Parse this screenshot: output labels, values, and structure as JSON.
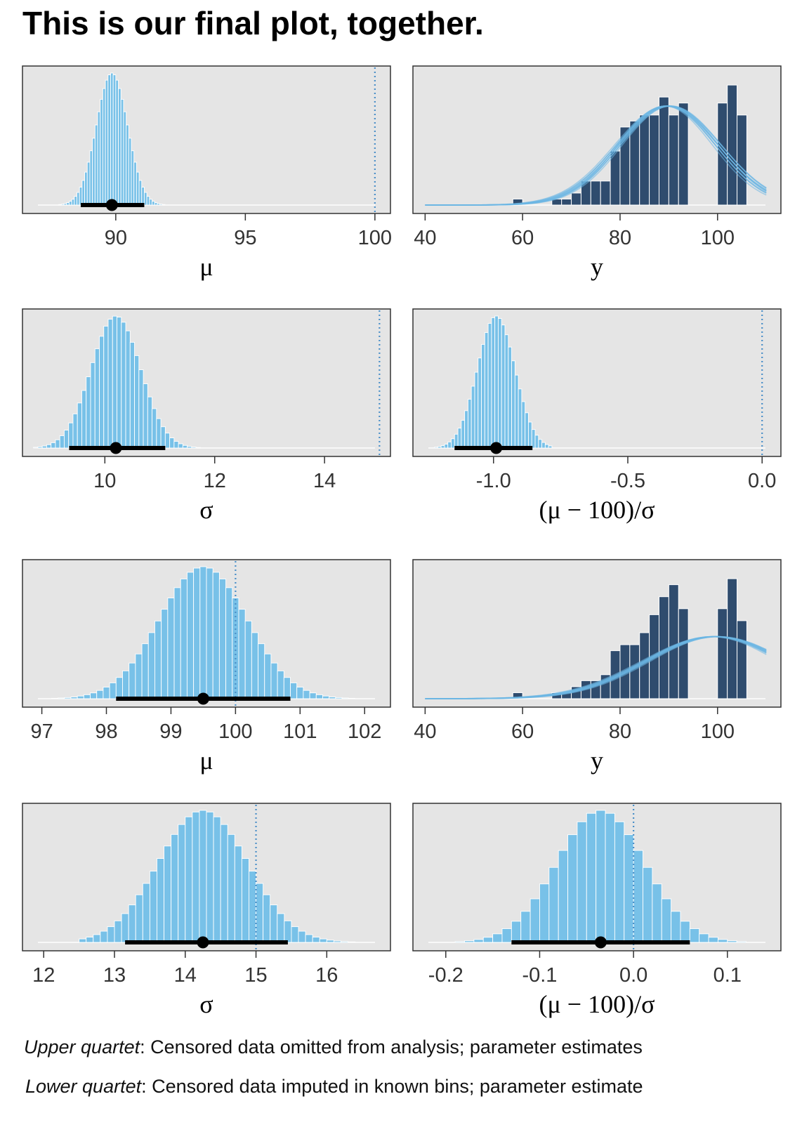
{
  "title": "This is our final plot, together.",
  "colors": {
    "panel_bg": "#e5e5e5",
    "hist_light": "#78c1e8",
    "hist_dark": "#2f4c6e",
    "ref_line": "#4a8fc8",
    "curve": "#6cb6e3",
    "interval": "#000000"
  },
  "captions": [
    {
      "label": "Upper quartet",
      "text": ": Censored data omitted from analysis; parameter estimates"
    },
    {
      "label": "Lower quartet",
      "text": ": Censored data imputed in known bins; parameter estimate"
    }
  ],
  "chart_data": [
    {
      "type": "bar",
      "variant": "posterior",
      "xlabel": "μ",
      "xlim": [
        86.4,
        100.6
      ],
      "xticks": [
        90,
        95,
        100
      ],
      "tick_labels": [
        "90",
        "95",
        "100"
      ],
      "dist": {
        "mean": 89.85,
        "sd": 0.6,
        "bin": 0.1,
        "from": 87.5,
        "to": 92.2
      },
      "interval": [
        88.65,
        91.1
      ],
      "point": 89.85,
      "ref_line": 100
    },
    {
      "type": "bar",
      "variant": "data",
      "xlabel": "y",
      "xlim": [
        37.5,
        113
      ],
      "xticks": [
        40,
        60,
        80,
        100
      ],
      "tick_labels": [
        "40",
        "60",
        "80",
        "100"
      ],
      "bins": [
        56,
        58,
        60,
        62,
        64,
        66,
        68,
        70,
        72,
        74,
        76,
        78,
        80,
        82,
        84,
        86,
        88,
        90,
        92,
        94,
        96,
        98,
        100,
        102,
        104,
        106
      ],
      "counts": [
        0,
        1,
        0,
        0,
        0,
        1,
        1,
        2,
        4,
        4,
        4,
        9,
        13,
        14,
        15,
        15,
        18,
        15,
        17,
        0,
        0,
        0,
        17,
        20,
        15,
        0
      ],
      "ylim_counts": 22,
      "curves": {
        "mean": 89.85,
        "sd": 10.2,
        "n": 12,
        "mean_jitter": 0.6,
        "sd_jitter": 0.5,
        "from": 40,
        "to": 110,
        "height": 0.75
      }
    },
    {
      "type": "bar",
      "variant": "posterior",
      "xlabel": "σ",
      "xlim": [
        8.5,
        15.2
      ],
      "xticks": [
        10,
        12,
        14
      ],
      "tick_labels": [
        "10",
        "12",
        "14"
      ],
      "dist": {
        "mean": 10.2,
        "sd": 0.45,
        "bin": 0.08,
        "from": 8.7,
        "to": 11.7
      },
      "interval": [
        9.35,
        11.1
      ],
      "point": 10.2,
      "ref_line": 15
    },
    {
      "type": "bar",
      "variant": "posterior",
      "xlabel": "(μ − 100)/σ",
      "xlim": [
        -1.3,
        0.07
      ],
      "xticks": [
        -1.0,
        -0.5,
        0.0
      ],
      "tick_labels": [
        "-1.0",
        "-0.5",
        "0.0"
      ],
      "dist": {
        "mean": -0.99,
        "sd": 0.07,
        "bin": 0.0125,
        "from": -1.22,
        "to": -0.78
      },
      "interval": [
        -1.145,
        -0.855
      ],
      "point": -0.99,
      "ref_line": 0
    },
    {
      "type": "bar",
      "variant": "posterior",
      "xlabel": "μ",
      "xlim": [
        96.7,
        102.4
      ],
      "xticks": [
        97,
        98,
        99,
        100,
        101,
        102
      ],
      "tick_labels": [
        "97",
        "98",
        "99",
        "100",
        "101",
        "102"
      ],
      "dist": {
        "mean": 99.5,
        "sd": 0.68,
        "bin": 0.1,
        "from": 96.95,
        "to": 102.0
      },
      "interval": [
        98.15,
        100.85
      ],
      "point": 99.5,
      "ref_line": 100
    },
    {
      "type": "bar",
      "variant": "data",
      "xlabel": "y",
      "xlim": [
        37.5,
        113
      ],
      "xticks": [
        40,
        60,
        80,
        100
      ],
      "tick_labels": [
        "40",
        "60",
        "80",
        "100"
      ],
      "bins": [
        56,
        58,
        60,
        62,
        64,
        66,
        68,
        70,
        72,
        74,
        76,
        78,
        80,
        82,
        84,
        86,
        88,
        90,
        92,
        94,
        96,
        98,
        100,
        102,
        104,
        106
      ],
      "counts": [
        0,
        1,
        0,
        0,
        0,
        1,
        1,
        2,
        3,
        3,
        4,
        8,
        9,
        9,
        11,
        14,
        17,
        19,
        15,
        0,
        0,
        0,
        15,
        20,
        13,
        0
      ],
      "ylim_counts": 22,
      "curves": {
        "mean": 99.5,
        "sd": 14.2,
        "n": 12,
        "mean_jitter": 0.7,
        "sd_jitter": 0.6,
        "from": 40,
        "to": 110,
        "height": 0.47
      }
    },
    {
      "type": "bar",
      "variant": "posterior",
      "xlabel": "σ",
      "xlim": [
        11.7,
        16.9
      ],
      "xticks": [
        12,
        13,
        14,
        15,
        16
      ],
      "tick_labels": [
        "12",
        "13",
        "14",
        "15",
        "16"
      ],
      "dist": {
        "mean": 14.25,
        "sd": 0.63,
        "bin": 0.1,
        "from": 12.5,
        "to": 16.7
      },
      "interval": [
        13.15,
        15.45
      ],
      "point": 14.25,
      "ref_line": 15
    },
    {
      "type": "bar",
      "variant": "posterior",
      "xlabel": "(μ − 100)/σ",
      "xlim": [
        -0.235,
        0.157
      ],
      "xticks": [
        -0.2,
        -0.1,
        0.0,
        0.1
      ],
      "tick_labels": [
        "-0.2",
        "-0.1",
        "0.0",
        "0.1"
      ],
      "dist": {
        "mean": -0.035,
        "sd": 0.047,
        "bin": 0.01,
        "from": -0.2,
        "to": 0.14
      },
      "interval": [
        -0.13,
        0.06
      ],
      "point": -0.035,
      "ref_line": 0
    }
  ]
}
